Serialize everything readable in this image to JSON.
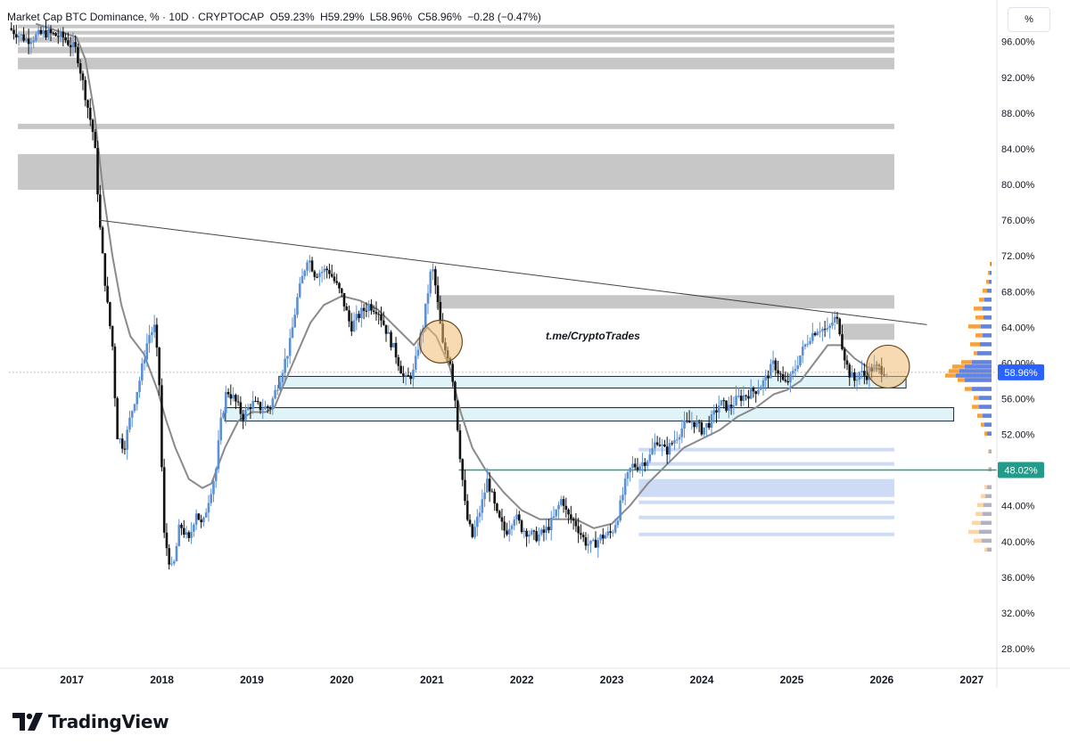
{
  "legend": {
    "title": "Market Cap BTC Dominance, % · 10D · CRYPTOCAP",
    "open": "O59.23%",
    "high": "H59.29%",
    "low": "L58.96%",
    "close": "C58.96%",
    "change": "−0.28 (−0.47%)"
  },
  "scale_mode_label": "%",
  "watermark_text": "t.me/CryptoTrades",
  "footer_brand": "TradingView",
  "colors": {
    "up_candle": "#5b8fd6",
    "down_candle": "#111111",
    "ma_line": "#8a8a8a",
    "trendline": "#444444",
    "resistance_zone": "#bdbdbd",
    "support_box_fill": "#e0f3f7",
    "support_box_stroke": "#1a2a3a",
    "highlight_circle": "#f0b973",
    "level_line": "#2a9d8f",
    "current_badge": "#2962ff",
    "level_badge": "#1f9d8a",
    "profile_orange": "#f7a13d",
    "profile_blue": "#5d84e6"
  },
  "chart_data": {
    "type": "candlestick",
    "title": "Market Cap BTC Dominance",
    "interval": "10D",
    "ylabel": "%",
    "ylim": [
      26,
      98
    ],
    "xlim": [
      2016.3,
      2027.25
    ],
    "y_ticks": [
      "96.00%",
      "92.00%",
      "88.00%",
      "84.00%",
      "80.00%",
      "76.00%",
      "72.00%",
      "68.00%",
      "64.00%",
      "60.00%",
      "56.00%",
      "52.00%",
      "48.00%",
      "44.00%",
      "40.00%",
      "36.00%",
      "32.00%",
      "28.00%"
    ],
    "y_tick_values": [
      96,
      92,
      88,
      84,
      80,
      76,
      72,
      68,
      64,
      60,
      56,
      52,
      48,
      44,
      40,
      36,
      32,
      28
    ],
    "x_ticks": [
      "2017",
      "2018",
      "2019",
      "2020",
      "2021",
      "2022",
      "2023",
      "2024",
      "2025",
      "2026",
      "2027"
    ],
    "x_tick_values": [
      2017,
      2018,
      2019,
      2020,
      2021,
      2022,
      2023,
      2024,
      2025,
      2026,
      2027
    ],
    "price_path": [
      [
        2016.3,
        97.5
      ],
      [
        2016.5,
        96.2
      ],
      [
        2016.7,
        97
      ],
      [
        2016.9,
        96.5
      ],
      [
        2017.05,
        95
      ],
      [
        2017.15,
        90
      ],
      [
        2017.25,
        85
      ],
      [
        2017.32,
        74
      ],
      [
        2017.4,
        66
      ],
      [
        2017.45,
        62
      ],
      [
        2017.5,
        52
      ],
      [
        2017.58,
        50.5
      ],
      [
        2017.65,
        54
      ],
      [
        2017.75,
        58
      ],
      [
        2017.85,
        63
      ],
      [
        2017.92,
        64
      ],
      [
        2017.97,
        58
      ],
      [
        2018.02,
        41
      ],
      [
        2018.08,
        38
      ],
      [
        2018.12,
        36.5
      ],
      [
        2018.2,
        42
      ],
      [
        2018.3,
        40
      ],
      [
        2018.38,
        43.5
      ],
      [
        2018.45,
        41.5
      ],
      [
        2018.5,
        44
      ],
      [
        2018.6,
        48
      ],
      [
        2018.65,
        53
      ],
      [
        2018.72,
        57
      ],
      [
        2018.8,
        56
      ],
      [
        2018.9,
        54
      ],
      [
        2019.0,
        55.5
      ],
      [
        2019.1,
        55
      ],
      [
        2019.2,
        55
      ],
      [
        2019.3,
        58
      ],
      [
        2019.42,
        62
      ],
      [
        2019.5,
        67
      ],
      [
        2019.62,
        72
      ],
      [
        2019.7,
        70
      ],
      [
        2019.85,
        70.5
      ],
      [
        2020.0,
        67.5
      ],
      [
        2020.1,
        64
      ],
      [
        2020.2,
        65.5
      ],
      [
        2020.3,
        66.5
      ],
      [
        2020.4,
        66
      ],
      [
        2020.5,
        63.5
      ],
      [
        2020.6,
        61
      ],
      [
        2020.7,
        58
      ],
      [
        2020.8,
        59
      ],
      [
        2020.85,
        62
      ],
      [
        2020.9,
        64
      ],
      [
        2020.95,
        67.5
      ],
      [
        2021.0,
        71
      ],
      [
        2021.05,
        68
      ],
      [
        2021.12,
        62
      ],
      [
        2021.2,
        60.5
      ],
      [
        2021.25,
        57
      ],
      [
        2021.32,
        49
      ],
      [
        2021.38,
        43
      ],
      [
        2021.45,
        40.5
      ],
      [
        2021.55,
        44
      ],
      [
        2021.62,
        47
      ],
      [
        2021.72,
        43
      ],
      [
        2021.82,
        41
      ],
      [
        2021.92,
        43
      ],
      [
        2022.0,
        41.5
      ],
      [
        2022.15,
        40.5
      ],
      [
        2022.25,
        41
      ],
      [
        2022.35,
        42.5
      ],
      [
        2022.45,
        45
      ],
      [
        2022.5,
        43
      ],
      [
        2022.6,
        42
      ],
      [
        2022.7,
        40
      ],
      [
        2022.78,
        39.5
      ],
      [
        2022.88,
        40.5
      ],
      [
        2023.0,
        41
      ],
      [
        2023.07,
        43
      ],
      [
        2023.15,
        46.5
      ],
      [
        2023.22,
        48.5
      ],
      [
        2023.3,
        48.5
      ],
      [
        2023.42,
        49.5
      ],
      [
        2023.5,
        51.5
      ],
      [
        2023.6,
        50
      ],
      [
        2023.7,
        51.5
      ],
      [
        2023.8,
        53
      ],
      [
        2023.9,
        53.5
      ],
      [
        2024.0,
        52.5
      ],
      [
        2024.1,
        53.5
      ],
      [
        2024.2,
        55.5
      ],
      [
        2024.3,
        55
      ],
      [
        2024.4,
        56
      ],
      [
        2024.5,
        56.5
      ],
      [
        2024.6,
        57
      ],
      [
        2024.7,
        58
      ],
      [
        2024.8,
        60
      ],
      [
        2024.88,
        58.5
      ],
      [
        2024.92,
        57.5
      ],
      [
        2025.0,
        58.5
      ],
      [
        2025.1,
        61
      ],
      [
        2025.2,
        63
      ],
      [
        2025.3,
        64
      ],
      [
        2025.4,
        63.5
      ],
      [
        2025.47,
        65
      ],
      [
        2025.52,
        64.5
      ],
      [
        2025.57,
        61.5
      ],
      [
        2025.63,
        59
      ],
      [
        2025.7,
        58
      ],
      [
        2025.75,
        59
      ],
      [
        2025.82,
        58.5
      ],
      [
        2025.9,
        59.5
      ],
      [
        2026.0,
        59.3
      ],
      [
        2026.07,
        58.96
      ]
    ],
    "moving_average": [
      [
        2016.6,
        98
      ],
      [
        2016.9,
        97
      ],
      [
        2017.05,
        96.5
      ],
      [
        2017.15,
        94
      ],
      [
        2017.25,
        88
      ],
      [
        2017.35,
        79
      ],
      [
        2017.45,
        72
      ],
      [
        2017.55,
        66.5
      ],
      [
        2017.65,
        63
      ],
      [
        2017.8,
        61
      ],
      [
        2017.95,
        57
      ],
      [
        2018.05,
        53.5
      ],
      [
        2018.15,
        50.5
      ],
      [
        2018.3,
        47
      ],
      [
        2018.45,
        46
      ],
      [
        2018.55,
        46.5
      ],
      [
        2018.7,
        50.5
      ],
      [
        2018.85,
        53.5
      ],
      [
        2019.0,
        54.5
      ],
      [
        2019.15,
        54.5
      ],
      [
        2019.25,
        55
      ],
      [
        2019.35,
        57.5
      ],
      [
        2019.5,
        61
      ],
      [
        2019.65,
        64.5
      ],
      [
        2019.8,
        66.5
      ],
      [
        2020.0,
        67.5
      ],
      [
        2020.2,
        67
      ],
      [
        2020.4,
        66
      ],
      [
        2020.6,
        64
      ],
      [
        2020.8,
        62
      ],
      [
        2020.95,
        64
      ],
      [
        2021.05,
        63
      ],
      [
        2021.2,
        59.5
      ],
      [
        2021.32,
        54.5
      ],
      [
        2021.45,
        50.5
      ],
      [
        2021.6,
        48
      ],
      [
        2021.8,
        45.5
      ],
      [
        2022.0,
        43.5
      ],
      [
        2022.2,
        42.5
      ],
      [
        2022.4,
        42.5
      ],
      [
        2022.6,
        42.5
      ],
      [
        2022.8,
        41.5
      ],
      [
        2023.0,
        42
      ],
      [
        2023.2,
        44
      ],
      [
        2023.4,
        46.5
      ],
      [
        2023.6,
        48.5
      ],
      [
        2023.8,
        50.5
      ],
      [
        2024.0,
        51.5
      ],
      [
        2024.2,
        52.5
      ],
      [
        2024.4,
        54
      ],
      [
        2024.6,
        55
      ],
      [
        2024.8,
        56.5
      ],
      [
        2024.95,
        57
      ],
      [
        2025.1,
        58
      ],
      [
        2025.25,
        60
      ],
      [
        2025.4,
        62
      ],
      [
        2025.55,
        62
      ],
      [
        2025.7,
        60.5
      ],
      [
        2025.85,
        59.5
      ],
      [
        2026.0,
        59.3
      ]
    ],
    "trendline": [
      [
        2017.3,
        76
      ],
      [
        2026.5,
        64.3
      ]
    ],
    "resistance_zones": [
      [
        97.5,
        97.9
      ],
      [
        96.8,
        97.2
      ],
      [
        95.9,
        96.5
      ],
      [
        94.7,
        95.4
      ],
      [
        92.9,
        94.2
      ],
      [
        86.2,
        86.8
      ],
      [
        79.4,
        83.4
      ],
      [
        66.1,
        67.6
      ],
      [
        62.6,
        64.4
      ]
    ],
    "resistance_zones_x_start": [
      2016.4,
      2016.4,
      2016.4,
      2016.4,
      2016.4,
      2016.4,
      2016.4,
      2021.05,
      2025.55
    ],
    "support_zones": [
      {
        "x": [
          2019.3,
          2026.27
        ],
        "y": [
          57.2,
          58.5
        ]
      },
      {
        "x": [
          2018.7,
          2026.8
        ],
        "y": [
          53.5,
          55
        ]
      }
    ],
    "lower_zones": [
      [
        50.1,
        50.5
      ],
      [
        48.5,
        48.9
      ],
      [
        45,
        47
      ],
      [
        44.2,
        44.6
      ],
      [
        42.5,
        42.9
      ],
      [
        40.6,
        41
      ]
    ],
    "lower_zones_x_start": 2023.3,
    "highlight_circles": [
      {
        "x": 2021.1,
        "y": 62.4
      },
      {
        "x": 2026.07,
        "y": 59.6
      }
    ],
    "horizontal_level": {
      "y": 48.02,
      "x_start": 2021.3,
      "label": "48.02%"
    },
    "current_price": {
      "value": 58.96,
      "label": "58.96%"
    },
    "volume_profile_orange": [
      [
        71,
        2
      ],
      [
        70,
        4
      ],
      [
        69,
        6
      ],
      [
        68,
        10
      ],
      [
        67,
        14
      ],
      [
        66,
        20
      ],
      [
        65,
        18
      ],
      [
        64,
        26
      ],
      [
        63,
        18
      ],
      [
        62,
        24
      ],
      [
        61,
        20
      ],
      [
        60,
        34
      ],
      [
        59.5,
        44
      ],
      [
        59,
        48
      ],
      [
        58.5,
        52
      ],
      [
        58,
        38
      ],
      [
        57,
        30
      ],
      [
        56,
        20
      ],
      [
        55,
        22
      ],
      [
        54,
        16
      ],
      [
        53,
        12
      ],
      [
        52,
        8
      ],
      [
        50,
        4
      ],
      [
        48,
        4
      ],
      [
        46,
        8
      ],
      [
        45,
        12
      ],
      [
        44,
        16
      ],
      [
        43,
        18
      ],
      [
        42,
        22
      ],
      [
        41,
        26
      ],
      [
        40,
        20
      ],
      [
        39,
        8
      ]
    ],
    "volume_profile_blue": [
      [
        71,
        1
      ],
      [
        70,
        2
      ],
      [
        69,
        3
      ],
      [
        68,
        5
      ],
      [
        67,
        8
      ],
      [
        66,
        10
      ],
      [
        65,
        9
      ],
      [
        64,
        12
      ],
      [
        63,
        10
      ],
      [
        62,
        13
      ],
      [
        61,
        16
      ],
      [
        60,
        22
      ],
      [
        59.5,
        30
      ],
      [
        59,
        36
      ],
      [
        58.5,
        40
      ],
      [
        58,
        30
      ],
      [
        57,
        22
      ],
      [
        56,
        14
      ],
      [
        55,
        14
      ],
      [
        54,
        10
      ],
      [
        53,
        8
      ],
      [
        52,
        5
      ],
      [
        50,
        3
      ],
      [
        48,
        3
      ],
      [
        46,
        5
      ],
      [
        45,
        7
      ],
      [
        44,
        9
      ],
      [
        43,
        10
      ],
      [
        42,
        12
      ],
      [
        41,
        14
      ],
      [
        40,
        11
      ],
      [
        39,
        5
      ]
    ]
  }
}
